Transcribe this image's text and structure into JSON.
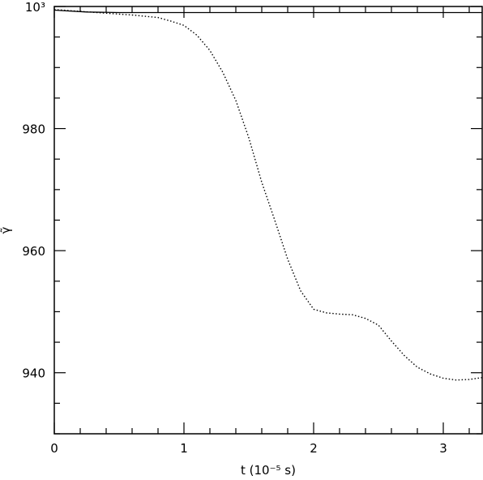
{
  "chart_data": {
    "type": "line",
    "xlabel": "t (10⁻⁵ s)",
    "ylabel": "γ̃",
    "xlim": [
      0,
      3.3
    ],
    "ylim": [
      930,
      1000
    ],
    "x_ticks": [
      {
        "value": 0,
        "label": "0"
      },
      {
        "value": 1,
        "label": "1"
      },
      {
        "value": 2,
        "label": "2"
      },
      {
        "value": 3,
        "label": "3"
      }
    ],
    "y_ticks": [
      {
        "value": 940,
        "label": "940"
      },
      {
        "value": 960,
        "label": "960"
      },
      {
        "value": 980,
        "label": "980"
      },
      {
        "value": 1000,
        "label": "10³"
      }
    ],
    "x_minor_step": 0.2,
    "y_minor_step": 5,
    "series": [
      {
        "style": "solid",
        "x": [
          0,
          0.25,
          0.5,
          0.75,
          1.0,
          1.25,
          1.5,
          1.75,
          2.0,
          2.25,
          2.5,
          2.75,
          3.0,
          3.3
        ],
        "y": [
          999.4,
          999.1,
          999.0,
          999.0,
          999.0,
          999.0,
          999.0,
          999.0,
          999.0,
          999.0,
          999.0,
          999.0,
          999.0,
          999.0
        ]
      },
      {
        "style": "dotted",
        "x": [
          0,
          0.2,
          0.4,
          0.6,
          0.8,
          0.9,
          1.0,
          1.1,
          1.2,
          1.3,
          1.4,
          1.5,
          1.6,
          1.7,
          1.8,
          1.9,
          2.0,
          2.1,
          2.2,
          2.3,
          2.4,
          2.5,
          2.6,
          2.7,
          2.8,
          2.9,
          3.0,
          3.1,
          3.2,
          3.3
        ],
        "y": [
          999.5,
          999.2,
          998.9,
          998.6,
          998.2,
          997.6,
          996.9,
          995.3,
          992.8,
          989.2,
          984.6,
          978.5,
          971.2,
          965.0,
          958.6,
          953.4,
          950.4,
          949.8,
          949.6,
          949.5,
          948.9,
          947.8,
          945.2,
          942.8,
          940.9,
          939.8,
          939.1,
          938.8,
          938.9,
          939.2
        ]
      }
    ]
  }
}
